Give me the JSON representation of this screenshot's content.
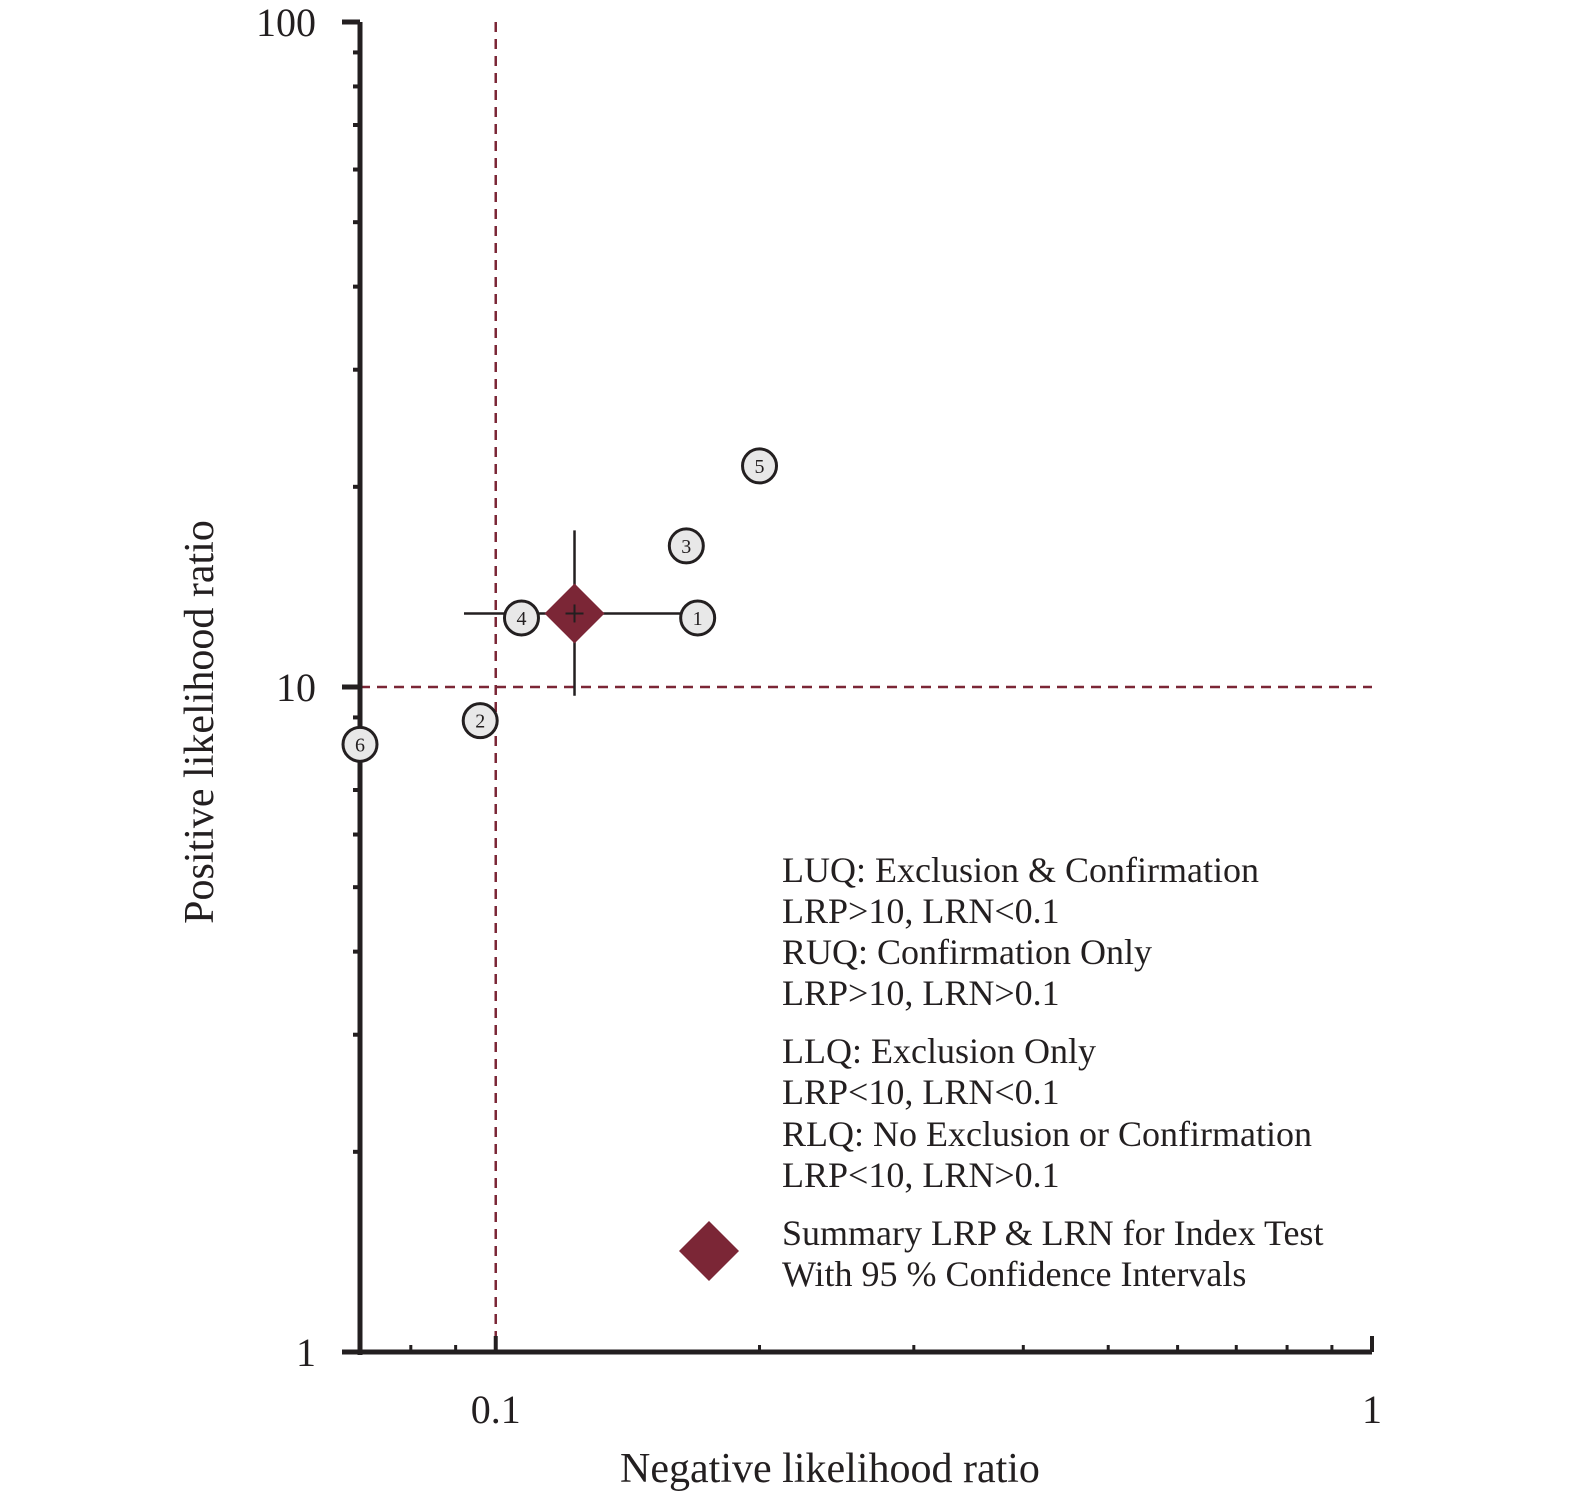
{
  "colors": {
    "accent": "#7b2636",
    "marker_fill": "#e8e8e8",
    "ink": "#231f20"
  },
  "chart_data": {
    "type": "scatter",
    "xscale": "log",
    "yscale": "log",
    "xlabel": "Negative likelihood ratio",
    "ylabel": "Positive likelihood ratio",
    "xlim": [
      0.07,
      1
    ],
    "ylim": [
      1,
      100
    ],
    "x_ticks": [
      {
        "value": 0.1,
        "label": "0.1"
      },
      {
        "value": 1,
        "label": "1"
      }
    ],
    "y_ticks": [
      {
        "value": 1,
        "label": "1"
      },
      {
        "value": 10,
        "label": "10"
      },
      {
        "value": 100,
        "label": "100"
      }
    ],
    "reference_lines": {
      "x": 0.1,
      "y": 10,
      "style": "dashed"
    },
    "studies": [
      {
        "id": "1",
        "lrn": 0.17,
        "lrp": 12.7
      },
      {
        "id": "2",
        "lrn": 0.096,
        "lrp": 8.9
      },
      {
        "id": "3",
        "lrn": 0.165,
        "lrp": 16.3
      },
      {
        "id": "4",
        "lrn": 0.107,
        "lrp": 12.7
      },
      {
        "id": "5",
        "lrn": 0.2,
        "lrp": 21.5
      },
      {
        "id": "6",
        "lrn": 0.07,
        "lrp": 8.2
      }
    ],
    "summary": {
      "lrn": 0.123,
      "lrp": 12.9,
      "lrn_ci": [
        0.092,
        0.176
      ],
      "lrp_ci": [
        9.7,
        17.2
      ]
    },
    "legend": {
      "lines": [
        "LUQ: Exclusion & Confirmation",
        "LRP>10, LRN<0.1",
        "RUQ: Confirmation Only",
        "LRP>10, LRN>0.1",
        "LLQ: Exclusion Only",
        "LRP<10, LRN<0.1",
        "RLQ: No Exclusion or Confirmation",
        "LRP<10, LRN>0.1"
      ],
      "summary_lines": [
        "Summary LRP & LRN for Index Test",
        "With 95 % Confidence Intervals"
      ]
    }
  }
}
